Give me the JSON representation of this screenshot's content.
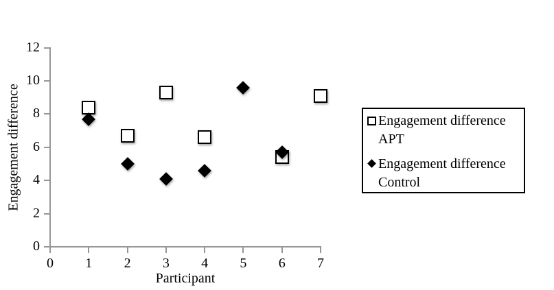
{
  "chart_data": {
    "type": "scatter",
    "title": "",
    "xlabel": "Participant",
    "ylabel": "Engagement difference",
    "xlim": [
      0,
      7
    ],
    "ylim": [
      0,
      12
    ],
    "x_ticks": [
      0,
      1,
      2,
      3,
      4,
      5,
      6,
      7
    ],
    "y_ticks": [
      0,
      2,
      4,
      6,
      8,
      10,
      12
    ],
    "grid": false,
    "legend_position": "right-outside-boxed",
    "series": [
      {
        "name": "Engagement difference APT",
        "marker": "open-square",
        "marker_color": "#000000",
        "marker_fill": "#ffffff",
        "points": [
          [
            1,
            8.4
          ],
          [
            2,
            6.7
          ],
          [
            3,
            9.3
          ],
          [
            4,
            6.6
          ],
          [
            6,
            5.4
          ],
          [
            7,
            9.1
          ]
        ]
      },
      {
        "name": "Engagement difference Control",
        "marker": "filled-diamond",
        "marker_color": "#000000",
        "marker_fill": "#000000",
        "points": [
          [
            1,
            7.7
          ],
          [
            2,
            5.0
          ],
          [
            3,
            4.1
          ],
          [
            4,
            4.6
          ],
          [
            5,
            9.6
          ],
          [
            6,
            5.7
          ]
        ]
      }
    ]
  },
  "style": {
    "background": "#ffffff",
    "axis_color": "#969696",
    "text_color": "#000000"
  }
}
